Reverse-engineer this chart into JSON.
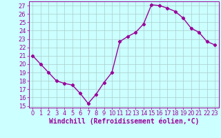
{
  "x": [
    0,
    1,
    2,
    3,
    4,
    5,
    6,
    7,
    8,
    9,
    10,
    11,
    12,
    13,
    14,
    15,
    16,
    17,
    18,
    19,
    20,
    21,
    22,
    23
  ],
  "y": [
    21,
    20,
    19,
    18,
    17.7,
    17.5,
    16.5,
    15.3,
    16.4,
    17.8,
    19.0,
    22.7,
    23.3,
    23.8,
    24.8,
    27.1,
    27.0,
    26.7,
    26.3,
    25.5,
    24.3,
    23.8,
    22.7,
    22.3
  ],
  "line_color": "#990099",
  "marker": "D",
  "marker_size": 2.2,
  "bg_color": "#ccffff",
  "grid_color": "#aacccc",
  "xlabel": "Windchill (Refroidissement éolien,°C)",
  "ylim": [
    14.8,
    27.5
  ],
  "yticks": [
    15,
    16,
    17,
    18,
    19,
    20,
    21,
    22,
    23,
    24,
    25,
    26,
    27
  ],
  "xlim": [
    -0.5,
    23.5
  ],
  "xticks": [
    0,
    1,
    2,
    3,
    4,
    5,
    6,
    7,
    8,
    9,
    10,
    11,
    12,
    13,
    14,
    15,
    16,
    17,
    18,
    19,
    20,
    21,
    22,
    23
  ],
  "xlabel_fontsize": 7,
  "tick_fontsize": 6,
  "line_width": 1.0
}
